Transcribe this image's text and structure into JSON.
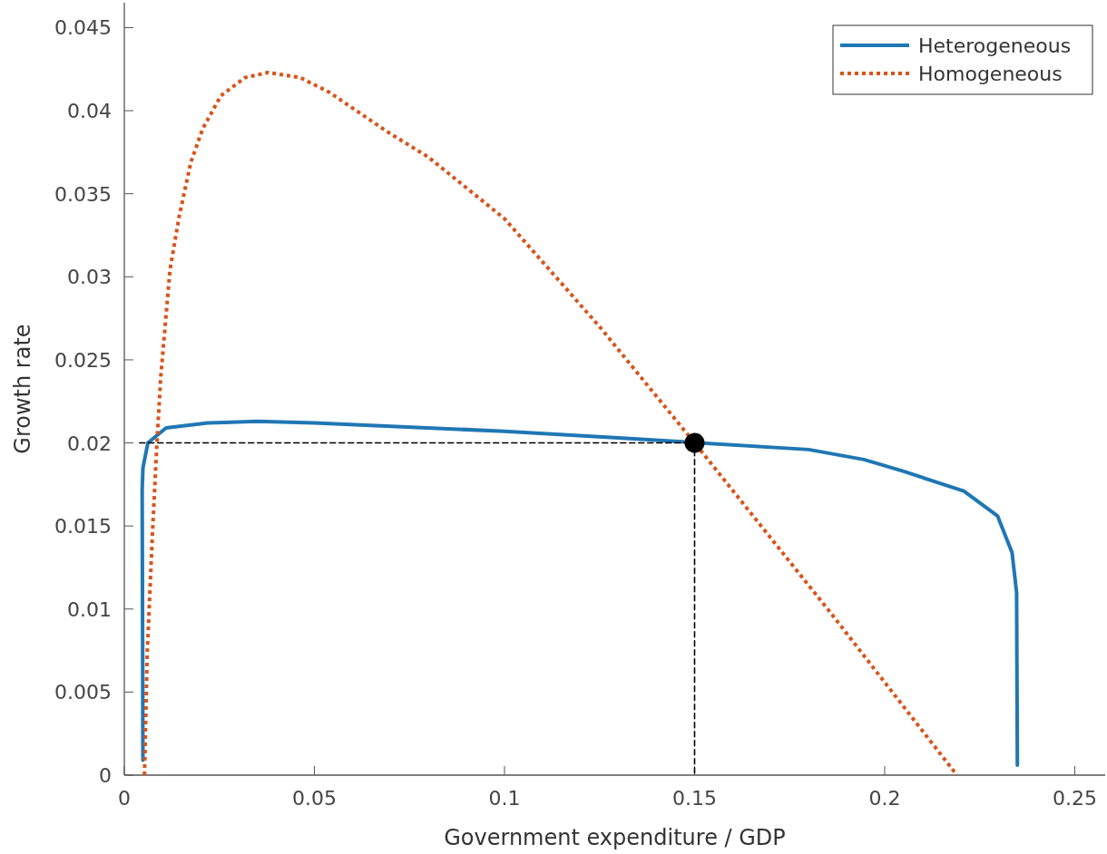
{
  "chart_data": {
    "type": "line",
    "xlabel": "Government expenditure / GDP",
    "ylabel": "Growth rate",
    "xlim": [
      0,
      0.258
    ],
    "ylim": [
      0,
      0.0465
    ],
    "xticks": [
      0,
      0.05,
      0.1,
      0.15,
      0.2,
      0.25
    ],
    "yticks": [
      0,
      0.005,
      0.01,
      0.015,
      0.02,
      0.025,
      0.03,
      0.035,
      0.04,
      0.045
    ],
    "legend": "top right",
    "grid": false,
    "series": [
      {
        "name": "Heterogeneous",
        "color": "#1f77b4",
        "line_style": "solid",
        "marker": "none",
        "x": [
          0.0049,
          0.0047,
          0.0049,
          0.0062,
          0.011,
          0.022,
          0.035,
          0.05,
          0.1,
          0.13,
          0.18,
          0.1945,
          0.2048,
          0.2208,
          0.2297,
          0.2335,
          0.2347,
          0.2349
        ],
        "values": [
          0.0009,
          0.0172,
          0.0185,
          0.02,
          0.0209,
          0.0212,
          0.0213,
          0.0212,
          0.0207,
          0.0203,
          0.0196,
          0.019,
          0.0183,
          0.0171,
          0.0156,
          0.0134,
          0.011,
          0.0006
        ]
      },
      {
        "name": "Homogeneous",
        "color": "#d95319",
        "line_style": "dotted",
        "marker": "none",
        "x": [
          0.0053,
          0.006,
          0.0074,
          0.0086,
          0.0096,
          0.0108,
          0.012,
          0.0144,
          0.0175,
          0.0206,
          0.0254,
          0.0318,
          0.0378,
          0.0462,
          0.054,
          0.0694,
          0.08,
          0.1,
          0.125,
          0.15,
          0.185,
          0.219
        ],
        "values": [
          0,
          0.0072,
          0.0145,
          0.0201,
          0.024,
          0.0272,
          0.0304,
          0.0336,
          0.0369,
          0.0389,
          0.0409,
          0.042,
          0.0423,
          0.042,
          0.0411,
          0.0387,
          0.0372,
          0.0335,
          0.027,
          0.02,
          0.01,
          0
        ]
      },
      {
        "type": "line",
        "color": "#000000",
        "line_style": "dashed",
        "marker": "none",
        "x": [
          0.004,
          0.15,
          0.15
        ],
        "values": [
          0.02,
          0.02,
          0
        ]
      },
      {
        "type": "scatter",
        "color": "#000000",
        "marker": "circle",
        "x": [
          0.15
        ],
        "values": [
          0.02
        ]
      }
    ]
  }
}
